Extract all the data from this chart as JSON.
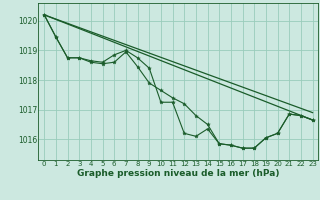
{
  "background_color": "#cce8e0",
  "plot_bg_color": "#cce8e0",
  "grid_color": "#99ccbb",
  "line_color": "#1a5c2a",
  "marker_color": "#1a5c2a",
  "xlabel": "Graphe pression niveau de la mer (hPa)",
  "xlabel_fontsize": 6.5,
  "xlim": [
    -0.5,
    23.5
  ],
  "ylim": [
    1015.3,
    1020.6
  ],
  "yticks": [
    1016,
    1017,
    1018,
    1019,
    1020
  ],
  "xticks": [
    0,
    1,
    2,
    3,
    4,
    5,
    6,
    7,
    8,
    9,
    10,
    11,
    12,
    13,
    14,
    15,
    16,
    17,
    18,
    19,
    20,
    21,
    22,
    23
  ],
  "series": [
    {
      "x": [
        0,
        1,
        2,
        3,
        4,
        5,
        6,
        7,
        8,
        9,
        10,
        11,
        12,
        13,
        14,
        15,
        16,
        17,
        18,
        19,
        20,
        21,
        22,
        23
      ],
      "y": [
        1020.2,
        1019.45,
        1018.75,
        1018.75,
        1018.65,
        1018.6,
        1018.85,
        1019.0,
        1018.75,
        1018.4,
        1017.25,
        1017.25,
        1016.2,
        1016.1,
        1016.35,
        1015.85,
        1015.8,
        1015.7,
        1015.7,
        1016.05,
        1016.2,
        1016.85,
        1016.8,
        1016.65
      ]
    },
    {
      "x": [
        0,
        1,
        2,
        3,
        4,
        5,
        6,
        7,
        8,
        9,
        10,
        11,
        12,
        13,
        14,
        15,
        16,
        17,
        18,
        19,
        20,
        21,
        22,
        23
      ],
      "y": [
        1020.2,
        1019.45,
        1018.75,
        1018.75,
        1018.6,
        1018.55,
        1018.6,
        1018.95,
        1018.45,
        1017.9,
        1017.65,
        1017.4,
        1017.2,
        1016.8,
        1016.5,
        1015.85,
        1015.8,
        1015.7,
        1015.7,
        1016.05,
        1016.2,
        1016.85,
        1016.8,
        1016.65
      ]
    },
    {
      "x": [
        0,
        23
      ],
      "y": [
        1020.2,
        1016.65
      ]
    },
    {
      "x": [
        0,
        23
      ],
      "y": [
        1020.2,
        1016.65
      ]
    }
  ],
  "diagonal_lines": [
    {
      "x": [
        0,
        23
      ],
      "y": [
        1020.2,
        1016.9
      ]
    },
    {
      "x": [
        0,
        23
      ],
      "y": [
        1020.2,
        1016.65
      ]
    }
  ]
}
